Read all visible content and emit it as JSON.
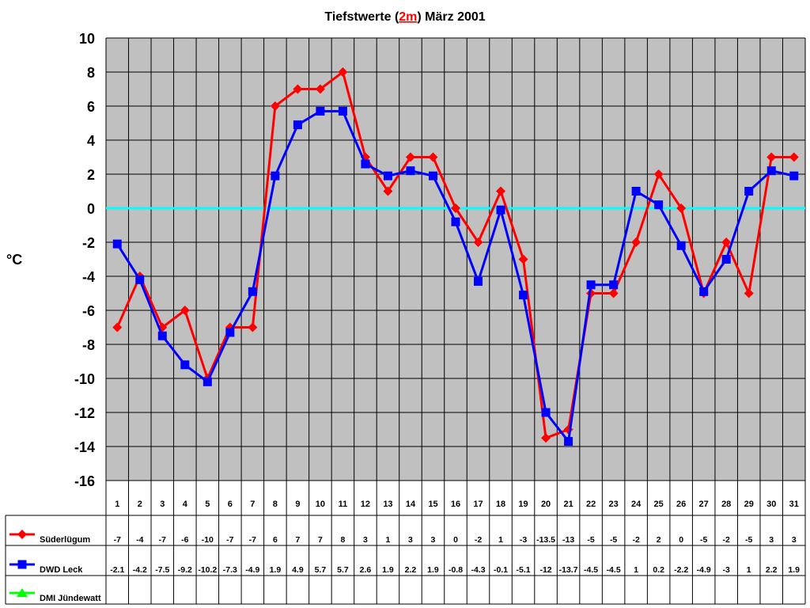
{
  "chart_data": {
    "type": "line",
    "title_parts": [
      "Tiefstwerte (",
      "2m",
      ") März 2001"
    ],
    "ylabel": "°C",
    "xlabel": "",
    "ylim": [
      -16,
      10
    ],
    "yticks": [
      10,
      8,
      6,
      4,
      2,
      0,
      -2,
      -4,
      -6,
      -8,
      -10,
      -12,
      -14,
      -16
    ],
    "grid": true,
    "zero_line_color": "#00FFFF",
    "plot_background": "#C0C0C0",
    "legend_placement": "data-table-left",
    "categories": [
      "1",
      "2",
      "3",
      "4",
      "5",
      "6",
      "7",
      "8",
      "9",
      "10",
      "11",
      "12",
      "13",
      "14",
      "15",
      "16",
      "17",
      "18",
      "19",
      "20",
      "21",
      "22",
      "23",
      "24",
      "25",
      "26",
      "27",
      "28",
      "29",
      "30",
      "31"
    ],
    "series": [
      {
        "name": "Süderlügum",
        "color": "#FF0000",
        "marker": "diamond",
        "values": [
          -7,
          -4,
          -7,
          -6,
          -10,
          -7,
          -7,
          6,
          7,
          7,
          8,
          3,
          1,
          3,
          3,
          0,
          -2,
          1,
          -3,
          -13.5,
          -13,
          -5,
          -5,
          -2,
          2,
          0,
          -5,
          -2,
          -5,
          3,
          3
        ]
      },
      {
        "name": "DWD Leck",
        "color": "#0000FF",
        "marker": "square",
        "values": [
          -2.1,
          -4.2,
          -7.5,
          -9.2,
          -10.2,
          -7.3,
          -4.9,
          1.9,
          4.9,
          5.7,
          5.7,
          2.6,
          1.9,
          2.2,
          1.9,
          -0.8,
          -4.3,
          -0.1,
          -5.1,
          -12,
          -13.7,
          -4.5,
          -4.5,
          1,
          0.2,
          -2.2,
          -4.9,
          -3,
          1,
          2.2,
          1.9
        ]
      },
      {
        "name": "DMI Jündewatt",
        "color": "#00FF00",
        "marker": "triangle",
        "values": [
          null,
          null,
          null,
          null,
          null,
          null,
          null,
          null,
          null,
          null,
          null,
          null,
          null,
          null,
          null,
          null,
          null,
          null,
          null,
          null,
          null,
          null,
          null,
          null,
          null,
          null,
          null,
          null,
          null,
          null,
          null
        ]
      }
    ]
  }
}
